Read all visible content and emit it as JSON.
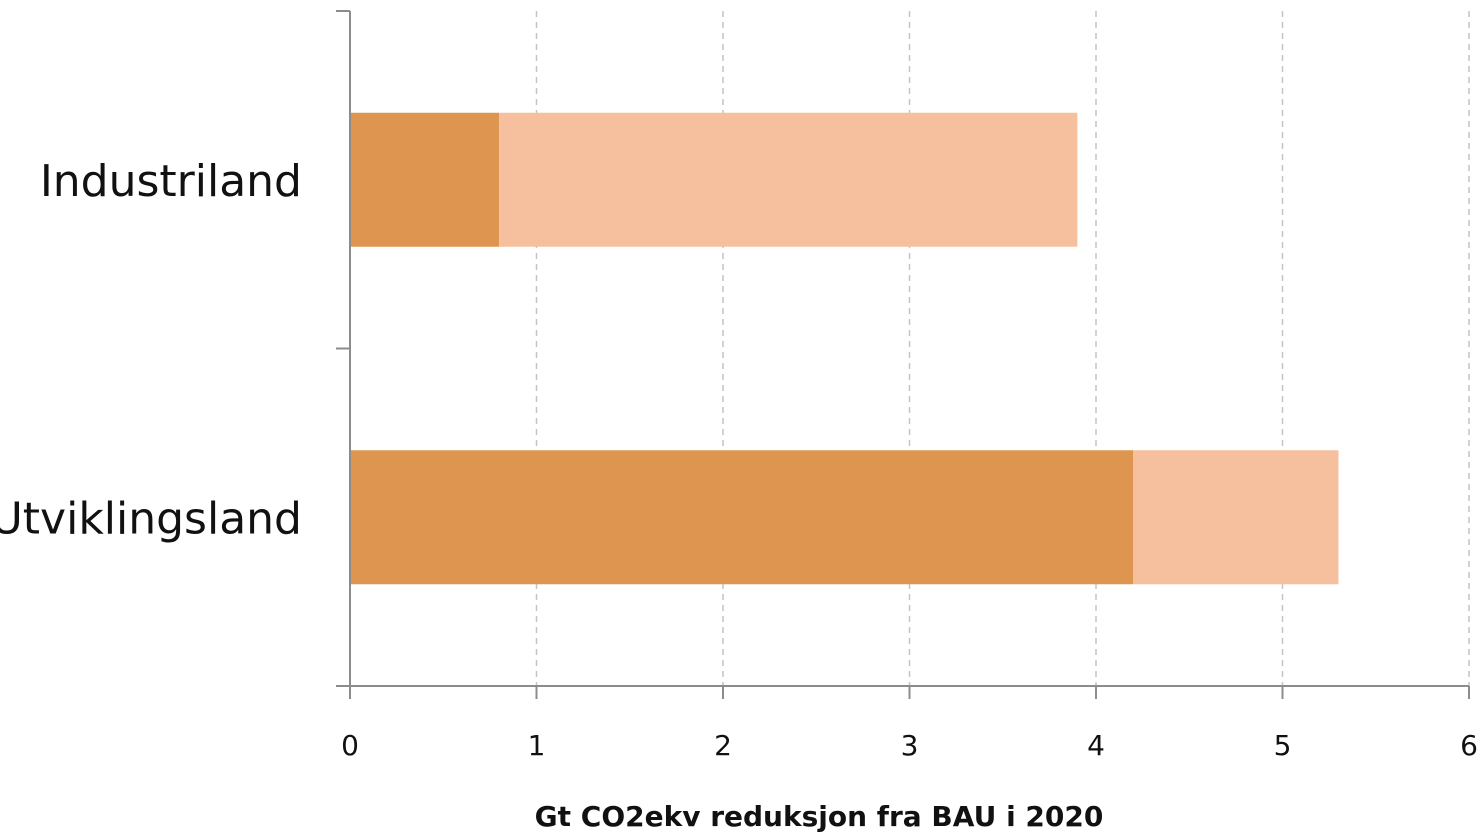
{
  "chart_data": {
    "type": "bar",
    "orientation": "horizontal",
    "stacked": true,
    "categories": [
      "Industriland",
      "Utviklingsland"
    ],
    "series": [
      {
        "values": [
          0.8,
          4.2
        ],
        "color": "#DE954F"
      },
      {
        "values": [
          3.1,
          1.1
        ],
        "color": "#F6C09E"
      }
    ],
    "xlabel": "Gt CO2ekv reduksjon fra BAU i 2020",
    "ylabel": "",
    "title": "",
    "xlim": [
      0,
      6
    ],
    "xticks": [
      "0",
      "1",
      "2",
      "3",
      "4",
      "5",
      "6"
    ],
    "grid": "vertical-dashed",
    "legend": "none"
  }
}
